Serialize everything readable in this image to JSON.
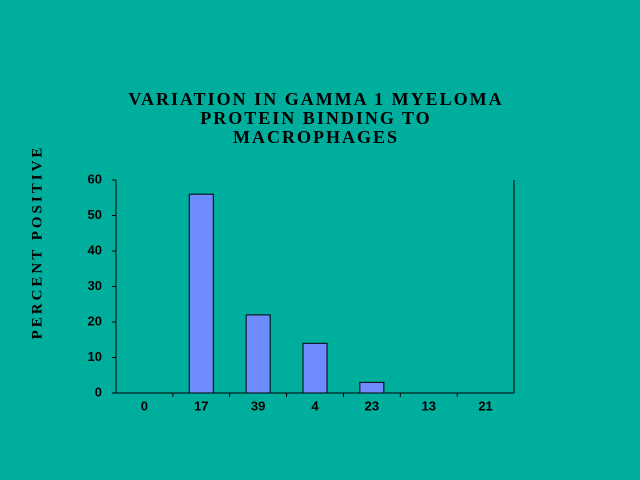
{
  "chart_data": {
    "type": "bar",
    "title": [
      "VARIATION IN GAMMA 1 MYELOMA",
      "PROTEIN BINDING TO",
      "MACROPHAGES"
    ],
    "y_label": "PERCENT POSITIVE",
    "categories": [
      "0",
      "17",
      "39",
      "4",
      "23",
      "13",
      "21"
    ],
    "values": [
      0,
      56,
      22,
      14,
      3,
      0,
      0
    ],
    "color": "#6f8cff",
    "ylim": [
      0,
      60
    ],
    "yticks": [
      0,
      10,
      20,
      30,
      40,
      50,
      60
    ],
    "grid": false
  }
}
